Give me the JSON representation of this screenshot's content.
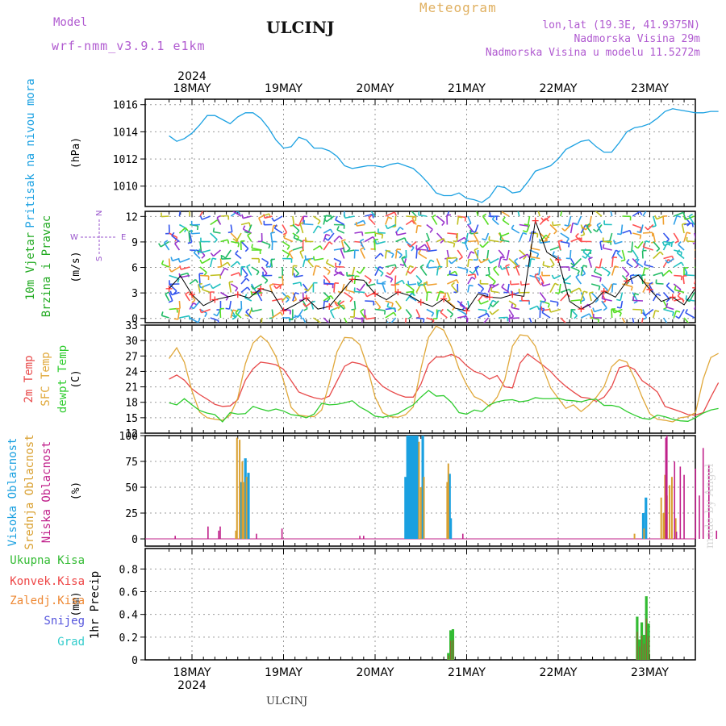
{
  "header": {
    "model_label": "Model",
    "model_name": "wrf-nmm_v3.9.1 e1km",
    "station": "ULCINJ",
    "product": "Meteogram",
    "coords": "lon,lat (19.3E, 41.9375N)",
    "elevation": "Nadmorska Visina 29m",
    "model_elevation": "Nadmorska Visina u modelu 11.5272m"
  },
  "footer": {
    "station": "ULCINJ",
    "credit": "made by Angel"
  },
  "colors": {
    "pressure": "#1ba1e2",
    "temp2m": "#e84a4a",
    "sfc": "#e0a83a",
    "dewpt": "#2ecc2e",
    "high": "#1aa0e0",
    "mid": "#d9a030",
    "low": "#c0208a",
    "total": "#33bb33",
    "conv": "#ee4444",
    "frozen": "#ee8833",
    "snow": "#5555dd",
    "hail": "#33cccc",
    "wind_label": "#22aa22",
    "axis_labels": "#9955cc"
  },
  "chart_data": [
    {
      "type": "line",
      "title": "",
      "ylabel": "Pritisak na nivou mora",
      "unit": "(hPa)",
      "ylim": [
        1008.5,
        1016.4
      ],
      "yticks": [
        "1010",
        "1012",
        "1014",
        "1016"
      ],
      "xlabels": [
        "18MAY",
        "19MAY",
        "20MAY",
        "21MAY",
        "22MAY",
        "23MAY"
      ],
      "year": "2024",
      "grid": true,
      "series": [
        {
          "x": [
            0,
            2,
            4,
            6,
            8,
            10,
            12,
            14,
            16,
            18,
            20,
            22,
            24,
            26,
            28,
            30,
            32,
            34,
            36,
            38,
            40,
            42,
            44,
            46,
            48,
            50,
            52,
            54,
            56,
            58,
            60,
            62,
            64,
            66,
            68,
            70,
            72,
            74,
            76,
            78,
            80,
            82,
            84,
            86,
            88,
            90,
            92,
            94,
            96,
            98,
            100,
            102,
            104,
            106,
            108,
            110,
            112,
            114,
            116,
            118,
            120,
            122,
            124,
            126,
            128,
            130,
            132,
            134,
            136,
            138,
            140,
            142,
            144
          ],
          "y": [
            1013.7,
            1013.3,
            1013.5,
            1013.9,
            1014.5,
            1015.2,
            1015.2,
            1014.9,
            1014.6,
            1015.1,
            1015.4,
            1015.4,
            1015.0,
            1014.3,
            1013.4,
            1012.8,
            1012.9,
            1013.6,
            1013.4,
            1012.8,
            1012.8,
            1012.6,
            1012.2,
            1011.5,
            1011.3,
            1011.4,
            1011.5,
            1011.5,
            1011.4,
            1011.6,
            1011.7,
            1011.5,
            1011.3,
            1010.8,
            1010.2,
            1009.5,
            1009.3,
            1009.3,
            1009.5,
            1009.1,
            1009.0,
            1008.8,
            1009.2,
            1010.0,
            1009.9,
            1009.5,
            1009.6,
            1010.3,
            1011.1,
            1011.3,
            1011.5,
            1012.0,
            1012.7,
            1013.0,
            1013.3,
            1013.4,
            1012.9,
            1012.5,
            1012.5,
            1013.2,
            1014.0,
            1014.3,
            1014.4,
            1014.6,
            1015.0,
            1015.5,
            1015.7,
            1015.6,
            1015.5,
            1015.4,
            1015.4,
            1015.5,
            1015.5
          ]
        }
      ]
    },
    {
      "type": "scatter",
      "title": "",
      "ylabel": "10m Vjetar Brzina i Pravac",
      "ylabel_lines": [
        "10m Vjetar",
        "Brzina i Pravac"
      ],
      "unit": "(m/s)",
      "ylim": [
        -0.5,
        12.6
      ],
      "yticks": [
        "0",
        "3",
        "6",
        "9",
        "12"
      ],
      "compass": {
        "n": "N",
        "e": "E",
        "s": "S",
        "w": "W"
      },
      "series": [
        {
          "name": "speed",
          "x": [
            0,
            3,
            6,
            9,
            12,
            15,
            18,
            21,
            24,
            27,
            30,
            33,
            36,
            39,
            42,
            45,
            48,
            51,
            54,
            57,
            60,
            63,
            66,
            69,
            72,
            75,
            78,
            81,
            84,
            87,
            90,
            93,
            96,
            99,
            102,
            105,
            108,
            111,
            114,
            117,
            120,
            123,
            126,
            129,
            132,
            135,
            138,
            141,
            144
          ],
          "y": [
            3.5,
            5.0,
            2.8,
            1.5,
            2.2,
            2.5,
            2.8,
            2.4,
            3.5,
            3.1,
            0.9,
            1.6,
            2.4,
            1.1,
            1.4,
            3.0,
            4.6,
            4.5,
            2.9,
            2.2,
            3.1,
            2.7,
            1.9,
            1.4,
            2.3,
            1.2,
            0.9,
            2.9,
            2.5,
            2.4,
            2.8,
            2.6,
            11.5,
            7.8,
            6.9,
            2.0,
            1.1,
            1.8,
            3.2,
            2.5,
            4.4,
            5.1,
            3.4,
            2.0,
            2.5,
            1.6,
            3.6,
            5.0,
            6.5
          ]
        }
      ]
    },
    {
      "type": "line",
      "title": "",
      "ylabel": "2m Temp / SFC Temp / dewpt Temp",
      "ylabel_lines": [
        "2m Temp",
        "SFC Temp",
        "dewpt Temp"
      ],
      "unit": "(C)",
      "ylim": [
        12,
        33
      ],
      "yticks": [
        "12",
        "15",
        "18",
        "21",
        "24",
        "27",
        "30",
        "33"
      ],
      "series": [
        {
          "name": "2m Temp",
          "x": [
            0,
            2,
            4,
            6,
            8,
            10,
            12,
            14,
            16,
            18,
            20,
            22,
            24,
            26,
            28,
            30,
            32,
            34,
            36,
            38,
            40,
            42,
            44,
            46,
            48,
            50,
            52,
            54,
            56,
            58,
            60,
            62,
            64,
            66,
            68,
            70,
            72,
            74,
            76,
            78,
            80,
            82,
            84,
            86,
            88,
            90,
            92,
            94,
            96,
            98,
            100,
            102,
            104,
            106,
            108,
            110,
            112,
            114,
            116,
            118,
            120,
            122,
            124,
            126,
            128,
            130,
            132,
            134,
            136,
            138,
            140,
            142,
            144
          ],
          "y": [
            22.5,
            23.3,
            22.3,
            20.6,
            19.5,
            18.6,
            17.6,
            17.2,
            17.3,
            18.5,
            22.3,
            24.5,
            25.8,
            25.6,
            25.3,
            24.4,
            22.2,
            20.0,
            19.4,
            18.9,
            18.6,
            19.2,
            22.1,
            25.0,
            25.8,
            25.5,
            24.8,
            22.6,
            21.1,
            20.2,
            19.5,
            19.0,
            19.0,
            21.5,
            25.4,
            26.8,
            26.8,
            27.3,
            26.6,
            25.1,
            24.0,
            23.5,
            22.5,
            23.2,
            21.0,
            20.8,
            25.6,
            27.4,
            26.3,
            25.2,
            24.0,
            22.4,
            21.1,
            20.0,
            19.0,
            18.8,
            18.2,
            19.0,
            21.0,
            24.7,
            25.1,
            24.4,
            22.2,
            21.2,
            20.0,
            17.2,
            16.7,
            16.2,
            15.6,
            15.5,
            16.0,
            19.0,
            21.8
          ]
        },
        {
          "name": "SFC Temp",
          "x": [
            0,
            2,
            4,
            6,
            8,
            10,
            12,
            14,
            16,
            18,
            20,
            22,
            24,
            26,
            28,
            30,
            32,
            34,
            36,
            38,
            40,
            42,
            44,
            46,
            48,
            50,
            52,
            54,
            56,
            58,
            60,
            62,
            64,
            66,
            68,
            70,
            72,
            74,
            76,
            78,
            80,
            82,
            84,
            86,
            88,
            90,
            92,
            94,
            96,
            98,
            100,
            102,
            104,
            106,
            108,
            110,
            112,
            114,
            116,
            118,
            120,
            122,
            124,
            126,
            128,
            130,
            132,
            134,
            136,
            138,
            140,
            142,
            144
          ],
          "y": [
            26.5,
            28.6,
            25.8,
            20.2,
            16.1,
            15.0,
            14.7,
            14.5,
            15.5,
            18.8,
            25.5,
            29.5,
            30.9,
            29.6,
            26.9,
            22.2,
            17.0,
            15.5,
            15.3,
            15.2,
            16.5,
            21.7,
            27.8,
            30.6,
            30.5,
            29.2,
            24.8,
            19.0,
            16.0,
            15.2,
            15.1,
            15.6,
            17.1,
            24.5,
            30.6,
            32.8,
            32.0,
            28.8,
            24.5,
            21.4,
            19.1,
            18.4,
            17.2,
            19.0,
            22.4,
            28.9,
            31.1,
            30.9,
            28.9,
            24.7,
            20.8,
            18.8,
            16.8,
            17.5,
            16.2,
            17.4,
            19.0,
            21.0,
            24.9,
            26.3,
            25.8,
            22.7,
            19.0,
            15.8,
            14.7,
            14.5,
            14.2,
            15.0,
            15.2,
            16.0,
            22.5,
            26.7,
            27.5
          ]
        },
        {
          "name": "dewpt Temp",
          "x": [
            0,
            2,
            4,
            6,
            8,
            10,
            12,
            14,
            16,
            18,
            20,
            22,
            24,
            26,
            28,
            30,
            32,
            34,
            36,
            38,
            40,
            42,
            44,
            46,
            48,
            50,
            52,
            54,
            56,
            58,
            60,
            62,
            64,
            66,
            68,
            70,
            72,
            74,
            76,
            78,
            80,
            82,
            84,
            86,
            88,
            90,
            92,
            94,
            96,
            98,
            100,
            102,
            104,
            106,
            108,
            110,
            112,
            114,
            116,
            118,
            120,
            122,
            124,
            126,
            128,
            130,
            132,
            134,
            136,
            138,
            140,
            142,
            144
          ],
          "y": [
            17.9,
            17.5,
            18.7,
            17.5,
            16.4,
            15.9,
            15.6,
            14.2,
            16.0,
            15.7,
            15.8,
            17.2,
            16.7,
            16.3,
            16.7,
            16.3,
            15.6,
            15.4,
            15.0,
            15.7,
            17.8,
            17.5,
            17.6,
            17.9,
            18.3,
            17.1,
            16.3,
            15.3,
            15.1,
            15.4,
            15.8,
            16.7,
            17.5,
            19.0,
            20.3,
            19.2,
            19.3,
            18.0,
            16.0,
            15.7,
            16.5,
            16.2,
            17.5,
            18.1,
            18.4,
            18.5,
            18.1,
            18.3,
            18.9,
            18.7,
            18.7,
            18.8,
            18.4,
            18.3,
            18.1,
            18.5,
            18.6,
            17.4,
            17.4,
            17.1,
            16.2,
            15.5,
            14.9,
            14.7,
            15.5,
            15.2,
            14.7,
            14.4,
            14.3,
            15.0,
            15.9,
            16.5,
            16.8
          ]
        }
      ]
    },
    {
      "type": "bar",
      "title": "",
      "ylabel": "Visoka Oblacnost / Srednja Oblacnost / Niska Oblacnost",
      "ylabel_lines": [
        "Visoka Oblacnost",
        "Srednja Oblacnost",
        "Niska Oblacnost"
      ],
      "unit": "(%)",
      "ylim": [
        -7,
        100
      ],
      "yticks": [
        "0",
        "25",
        "50",
        "75",
        "100"
      ],
      "series": [
        {
          "name": "Visoka",
          "x": [
            18.9,
            20.0,
            20.8,
            62.0,
            62.5,
            63.0,
            63.5,
            64.0,
            64.5,
            65.0,
            66.5,
            73.5,
            73.8,
            124.3,
            125.0
          ],
          "y": [
            55,
            78,
            64,
            60,
            100,
            100,
            100,
            100,
            100,
            100,
            100,
            63,
            20,
            25,
            40
          ]
        },
        {
          "name": "Srednja",
          "x": [
            17.5,
            17.8,
            18.5,
            19.2,
            19.6,
            20.3,
            65.5,
            66.0,
            66.8,
            72.9,
            73.2,
            122.0,
            124.5,
            129.0,
            129.6,
            130.0,
            130.5,
            131.2,
            131.8,
            132.8
          ],
          "y": [
            8,
            98,
            96,
            75,
            55,
            60,
            94,
            50,
            60,
            55,
            73,
            5,
            10,
            40,
            25,
            62,
            42,
            52,
            60,
            20
          ]
        },
        {
          "name": "Niska",
          "x": [
            1.6,
            13.0,
            50.0,
            51.0,
            77.0,
            130.5,
            132.5,
            134.0,
            135.0,
            138.0,
            139.0,
            140.0,
            141.5,
            143.5,
            10.2,
            13.4,
            22.9,
            29.6,
            133.0,
            130.2
          ],
          "y": [
            3,
            8,
            3,
            3,
            5,
            100,
            75,
            70,
            62,
            68,
            42,
            88,
            72,
            8,
            12,
            12,
            5,
            10,
            7,
            98
          ]
        }
      ]
    },
    {
      "type": "bar",
      "title": "",
      "ylabel": "1hr Precip",
      "unit": "(mm)",
      "ylim": [
        0,
        0.98
      ],
      "yticks": [
        "0",
        "0.2",
        "0.4",
        "0.6",
        "0.8"
      ],
      "legend": [
        "Ukupna Kisa",
        "Konvek.Kisa",
        "Zaledj.Kisa",
        "Snijeg",
        "Grad"
      ],
      "series": [
        {
          "name": "Ukupna Kisa",
          "x": [
            73.2,
            73.8,
            74.4,
            122.7,
            123.3,
            123.9,
            124.5,
            125.1,
            125.7
          ],
          "y": [
            0.06,
            0.26,
            0.27,
            0.38,
            0.18,
            0.33,
            0.22,
            0.56,
            0.32
          ]
        }
      ]
    }
  ]
}
